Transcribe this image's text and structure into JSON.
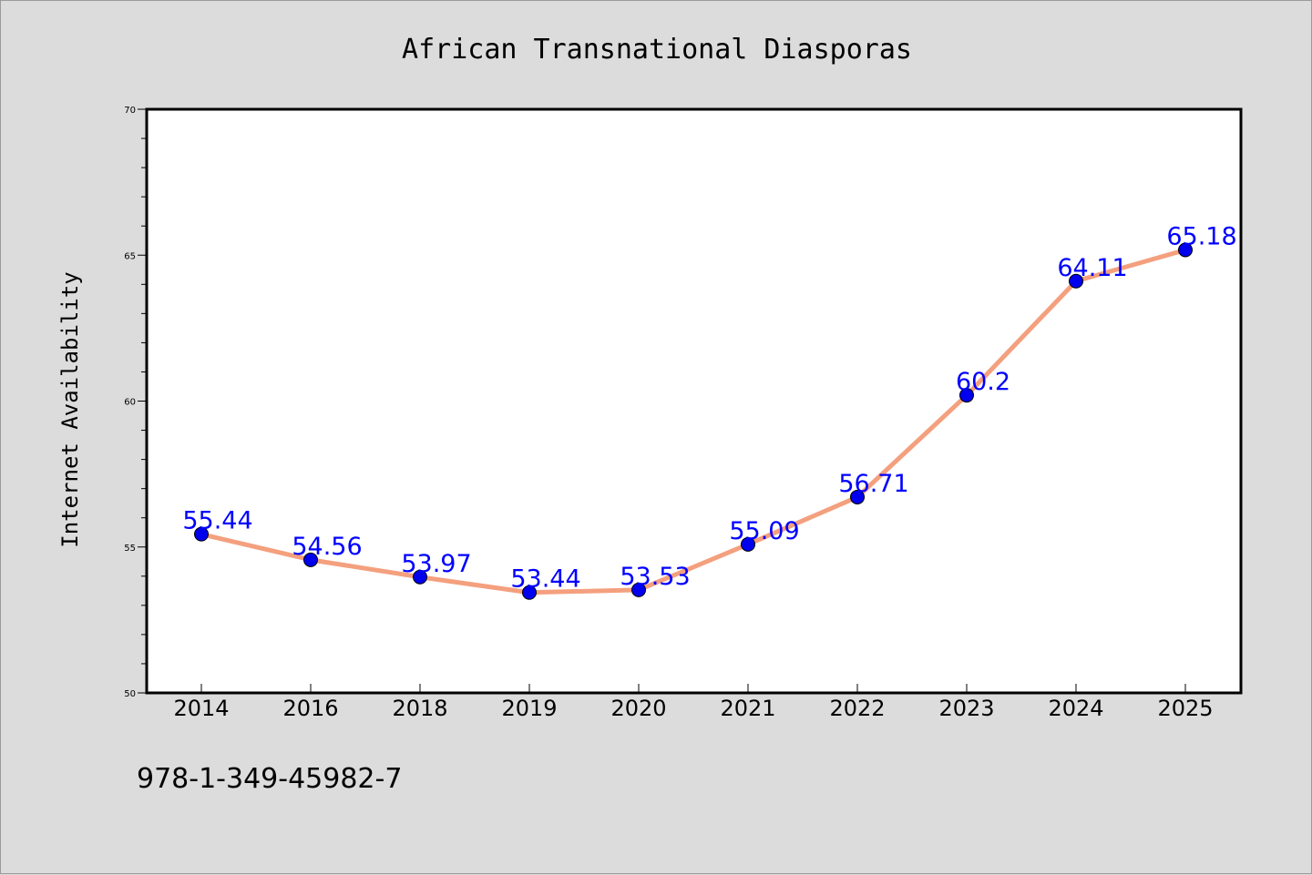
{
  "chart_data": {
    "type": "line",
    "title": "African Transnational Diasporas",
    "xlabel": "",
    "ylabel": "Internet Availability",
    "categories": [
      "2014",
      "2016",
      "2018",
      "2019",
      "2020",
      "2021",
      "2022",
      "2023",
      "2024",
      "2025"
    ],
    "series": [
      {
        "values": [
          55.44,
          54.56,
          53.97,
          53.44,
          53.53,
          55.09,
          56.71,
          60.2,
          64.11,
          65.18
        ],
        "labels": [
          "55.44",
          "54.56",
          "53.97",
          "53.44",
          "53.53",
          "55.09",
          "56.71",
          "60.2",
          "64.11",
          "65.18"
        ],
        "line_color": "#f4a07e",
        "marker_color": "#0000ee"
      }
    ],
    "ylim": [
      50,
      70
    ],
    "yticks": [
      "50",
      "55",
      "60",
      "65",
      "70"
    ],
    "yminor_step": 1,
    "grid": false,
    "legend": "none",
    "label_color": "#0000ff"
  },
  "footer": {
    "isbn": "978-1-349-45982-7"
  },
  "colors": {
    "background": "#dcdcdc",
    "plot_area": "#ffffff"
  }
}
